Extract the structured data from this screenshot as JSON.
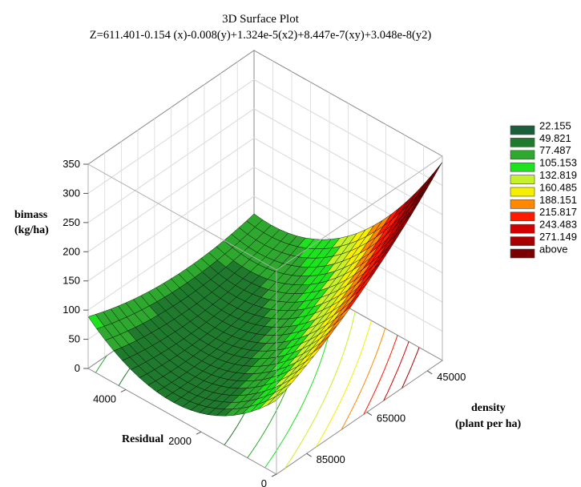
{
  "chart_data": {
    "type": "surface3d",
    "title": "3D  Surface Plot",
    "equation": "Z=611.401-0.154 (x)-0.008(y)+1.324e-5(x2)+8.447e-7(xy)+3.048e-8(y2)",
    "coefficients": {
      "c0": 611.401,
      "x": -0.154,
      "y": -0.008,
      "x2": 1.324e-05,
      "xy": 8.447e-07,
      "y2": 3.048e-08
    },
    "axes": {
      "z": {
        "label_line1": "bimass",
        "label_line2": "(kg/ha)",
        "range": [
          0,
          350
        ],
        "ticks": [
          "0",
          "50",
          "100",
          "150",
          "200",
          "250",
          "300",
          "350"
        ]
      },
      "x": {
        "label": "Residual",
        "range": [
          0,
          5000
        ],
        "ticks": [
          "0",
          "2000",
          "4000"
        ]
      },
      "y": {
        "label_line1": "density",
        "label_line2": "(plant per ha)",
        "range": [
          40000,
          95000
        ],
        "ticks": [
          "45000",
          "65000",
          "85000"
        ]
      }
    },
    "legend": {
      "placement": "right",
      "entries": [
        {
          "label": "22.155",
          "color": "#1b5e3b"
        },
        {
          "label": "49.821",
          "color": "#1f7a2e"
        },
        {
          "label": "77.487",
          "color": "#2ea82e"
        },
        {
          "label": "105.153",
          "color": "#1fe21f"
        },
        {
          "label": "132.819",
          "color": "#c6f02a"
        },
        {
          "label": "160.485",
          "color": "#f4f000"
        },
        {
          "label": "188.151",
          "color": "#ff8800"
        },
        {
          "label": "215.817",
          "color": "#ff1a00"
        },
        {
          "label": "243.483",
          "color": "#d40000"
        },
        {
          "label": "271.149",
          "color": "#a80000"
        },
        {
          "label": "above",
          "color": "#7a0000"
        }
      ]
    },
    "grid": true
  }
}
